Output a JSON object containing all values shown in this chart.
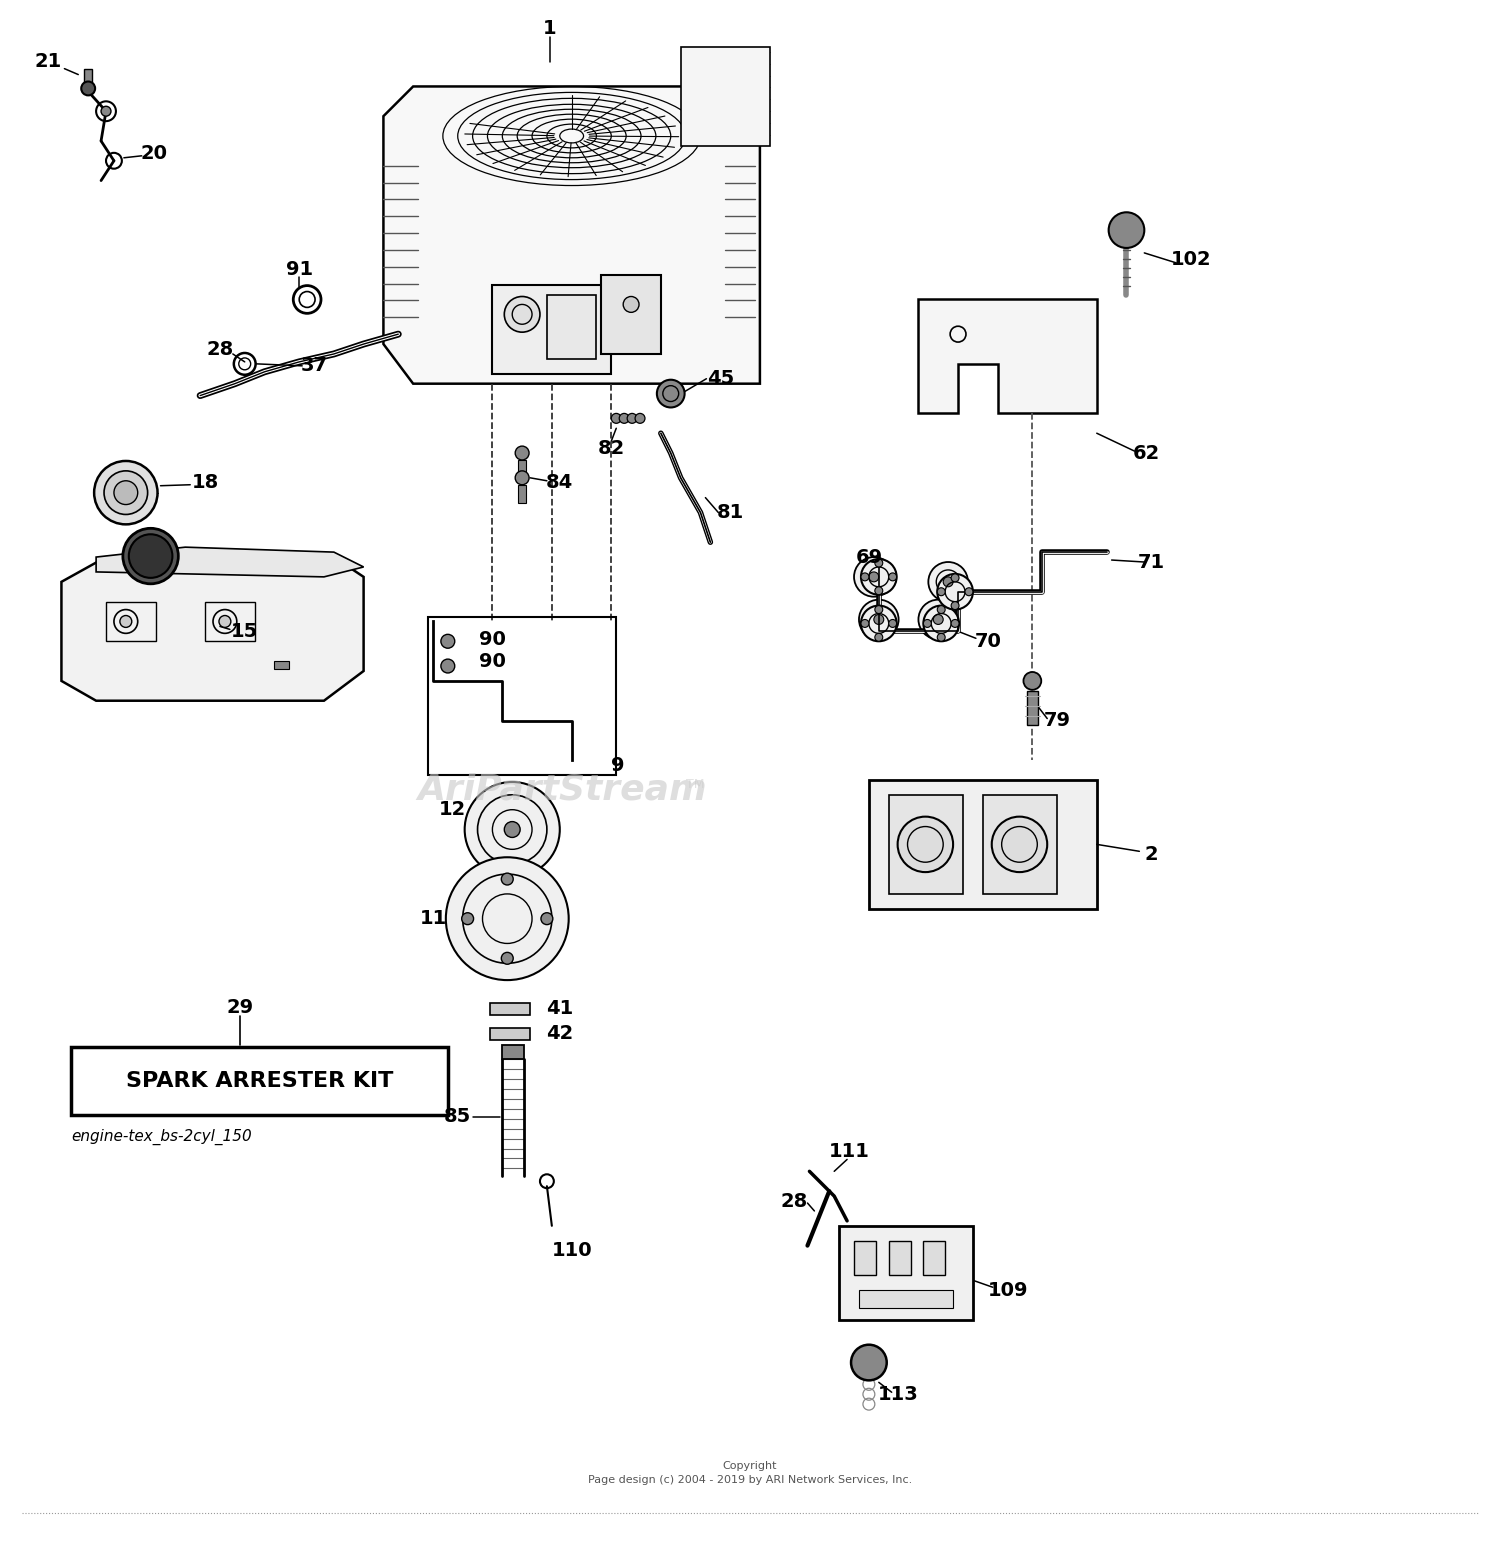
{
  "background_color": "#ffffff",
  "watermark_text": "AriPartStream",
  "watermark_color": "#c8c8c8",
  "subtitle": "engine-tex_bs-2cyl_150",
  "copyright_text": "Copyright\nPage design (c) 2004 - 2019 by ARI Network Services, Inc.",
  "spark_arrester_box_text": "SPARK ARRESTER KIT",
  "figsize": [
    15.0,
    15.55
  ],
  "dpi": 100,
  "label_fontsize": 14,
  "label_fontsize_sm": 12
}
